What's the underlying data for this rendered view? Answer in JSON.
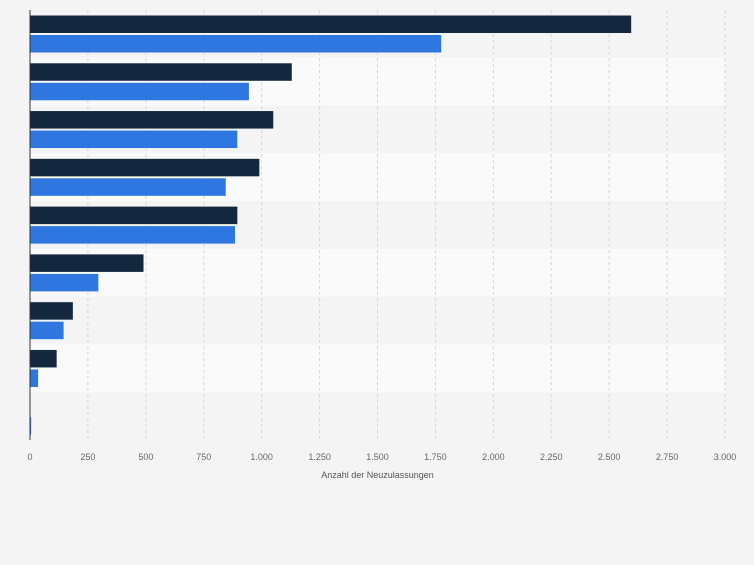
{
  "chart_data": {
    "type": "bar",
    "orientation": "horizontal",
    "title": "",
    "xlabel": "Anzahl der Neuzulassungen",
    "ylabel": "",
    "xlim": [
      0,
      3000
    ],
    "x_ticks": [
      0,
      250,
      500,
      750,
      1000,
      1250,
      1500,
      1750,
      2000,
      2250,
      2500,
      2750,
      3000
    ],
    "x_tick_labels": [
      "0",
      "250",
      "500",
      "750",
      "1.000",
      "1.250",
      "1.500",
      "1.750",
      "2.000",
      "2.250",
      "2.500",
      "2.750",
      "3.000"
    ],
    "grid": "vertical-dashed",
    "legend": "none",
    "categories": [
      "",
      "",
      "",
      "",
      "",
      "",
      "",
      "",
      ""
    ],
    "series": [
      {
        "color": "#13273f",
        "values": [
          2595,
          1130,
          1050,
          990,
          895,
          490,
          185,
          115,
          0
        ]
      },
      {
        "color": "#2f77e0",
        "values": [
          1775,
          945,
          895,
          845,
          885,
          295,
          145,
          35,
          5
        ]
      }
    ]
  }
}
